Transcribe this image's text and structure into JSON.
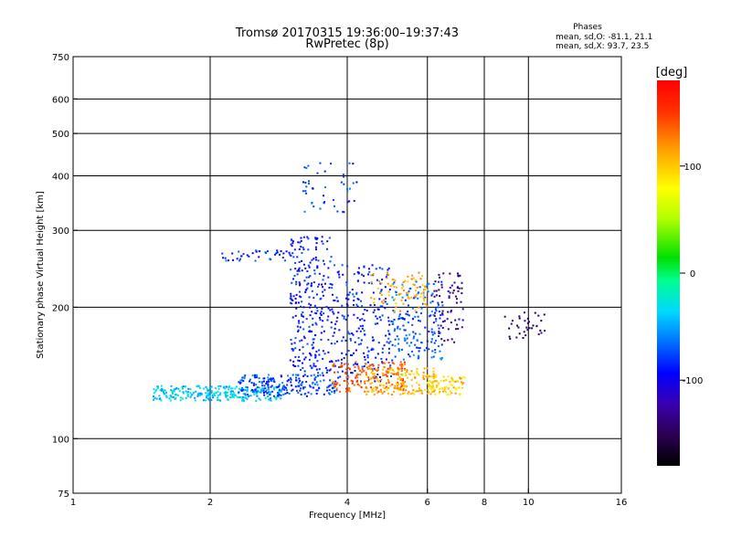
{
  "chart_data": {
    "type": "scatter",
    "title": "Tromsø 20170315 19:36:00–19:37:43",
    "subtitle": "RwPretec (8p)",
    "xlabel": "Frequency [MHz]",
    "ylabel": "Stationary phase Virtual Height [km]",
    "x_scale": "log",
    "y_scale": "log",
    "xlim": [
      1,
      16
    ],
    "ylim": [
      75,
      750
    ],
    "x_ticks": [
      1,
      2,
      4,
      6,
      8,
      10,
      16
    ],
    "x_gridlines": [
      2,
      4,
      6,
      8,
      10
    ],
    "y_ticks": [
      75,
      100,
      200,
      300,
      400,
      500,
      600,
      750
    ],
    "y_gridlines": [
      100,
      200,
      300,
      400,
      500,
      600
    ],
    "grid": true,
    "stats": {
      "heading": "Phases",
      "line1": "mean, sd,O: -81.1, 21.1",
      "line2": "mean, sd,X:  93.7, 23.5"
    },
    "colorbar": {
      "label": "[deg]",
      "range": [
        -180,
        180
      ],
      "ticks": [
        100,
        0,
        -100
      ],
      "palette": "rainbow"
    },
    "clusters": [
      {
        "name": "low-cyan",
        "x": [
          1.5,
          2.9
        ],
        "y": [
          122,
          132
        ],
        "phase": -40,
        "n": 260
      },
      {
        "name": "low-mid-blue",
        "x": [
          2.3,
          3.8
        ],
        "y": [
          125,
          140
        ],
        "phase": -75,
        "n": 200
      },
      {
        "name": "blue-column-3",
        "x": [
          3.0,
          3.7
        ],
        "y": [
          140,
          290
        ],
        "phase": -90,
        "n": 260
      },
      {
        "name": "blue-column-4",
        "x": [
          3.7,
          5.0
        ],
        "y": [
          135,
          250
        ],
        "phase": -85,
        "n": 240
      },
      {
        "name": "orange-low",
        "x": [
          3.7,
          5.4
        ],
        "y": [
          128,
          150
        ],
        "phase": 140,
        "n": 150
      },
      {
        "name": "yellow-low",
        "x": [
          4.4,
          6.3
        ],
        "y": [
          126,
          145
        ],
        "phase": 105,
        "n": 160
      },
      {
        "name": "yellow-right",
        "x": [
          6.0,
          7.3
        ],
        "y": [
          126,
          140
        ],
        "phase": 100,
        "n": 80
      },
      {
        "name": "mixed-mid-5-6",
        "x": [
          5.0,
          6.5
        ],
        "y": [
          150,
          230
        ],
        "phase": -70,
        "n": 170
      },
      {
        "name": "yellow-mid",
        "x": [
          4.5,
          6.0
        ],
        "y": [
          195,
          240
        ],
        "phase": 110,
        "n": 80
      },
      {
        "name": "purple-right",
        "x": [
          6.2,
          7.2
        ],
        "y": [
          165,
          240
        ],
        "phase": -130,
        "n": 70
      },
      {
        "name": "blue-2-band",
        "x": [
          2.1,
          3.0
        ],
        "y": [
          255,
          270
        ],
        "phase": -85,
        "n": 40
      },
      {
        "name": "blue-high",
        "x": [
          3.2,
          4.2
        ],
        "y": [
          330,
          430
        ],
        "phase": -80,
        "n": 45
      },
      {
        "name": "purple-far",
        "x": [
          8.8,
          11.0
        ],
        "y": [
          168,
          195
        ],
        "phase": -150,
        "n": 35
      }
    ]
  }
}
